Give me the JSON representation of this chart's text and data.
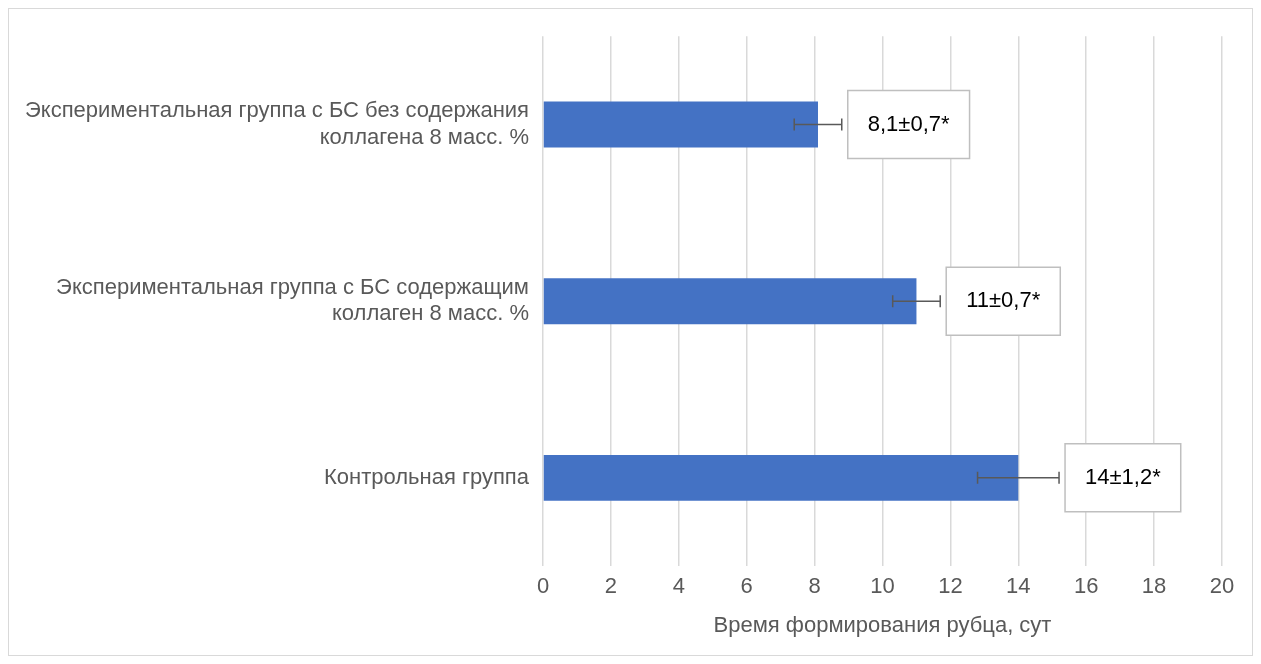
{
  "chart_data": {
    "type": "bar",
    "orientation": "horizontal",
    "categories": [
      "Экспериментальная группа с БС без содержания коллагена 8 масс. %",
      "Экспериментальная группа с БС содержащим коллаген 8 масс. %",
      "Контрольная группа"
    ],
    "values": [
      8.1,
      11,
      14
    ],
    "errors": [
      0.7,
      0.7,
      1.2
    ],
    "value_labels": [
      "8,1±0,7*",
      "11±0,7*",
      "14±1,2*"
    ],
    "color": "#4472c4",
    "xlim": [
      0,
      20
    ],
    "xticks": [
      0,
      2,
      4,
      6,
      8,
      10,
      12,
      14,
      16,
      18,
      20
    ],
    "xlabel": "Время формирования рубца, сут",
    "grid": "x"
  }
}
